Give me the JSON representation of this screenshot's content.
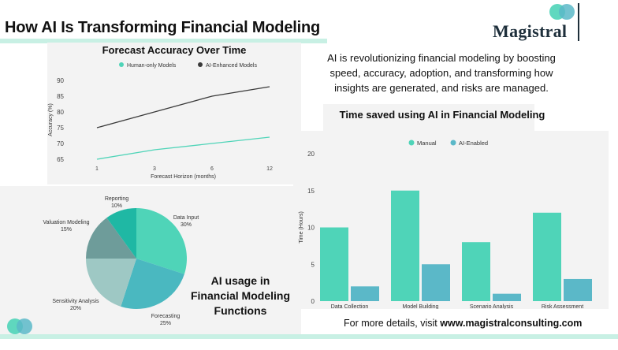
{
  "header": {
    "title": "How AI Is Transforming Financial Modeling",
    "logo_text": "Magistral"
  },
  "intro_text": "AI is revolutionizing financial modeling by boosting speed, accuracy, adoption, and transforming how insights are generated, and risks are managed.",
  "pie_heading": "AI usage in Financial Modeling Functions",
  "footer": {
    "prefix": "For more details, visit ",
    "link": "www.magistralconsulting.com"
  },
  "colors": {
    "teal": "#4fd4b8",
    "blue_teal": "#5bb8c8",
    "dark_line": "#3a3a3a",
    "band": "#c8f0e4",
    "logo_dark": "#1e2f3b"
  },
  "chart_data": [
    {
      "type": "line",
      "title": "Forecast Accuracy Over Time",
      "x": [
        "1",
        "3",
        "6",
        "12"
      ],
      "xlabel": "Forecast Horizon (months)",
      "ylabel": "Accuracy (%)",
      "yticks": [
        65,
        70,
        75,
        80,
        85,
        90
      ],
      "ylim": [
        64,
        91
      ],
      "legend_position": "top",
      "series": [
        {
          "name": "Human-only Models",
          "values": [
            65,
            68,
            70,
            72
          ],
          "color": "#4fd4b8"
        },
        {
          "name": "AI-Enhanced Models",
          "values": [
            75,
            80,
            85,
            88
          ],
          "color": "#3a3a3a"
        }
      ]
    },
    {
      "type": "pie",
      "slices": [
        {
          "label": "Data Input",
          "value": 30,
          "pct_label": "30%",
          "color": "#4fd4b8"
        },
        {
          "label": "Forecasting",
          "value": 25,
          "pct_label": "25%",
          "color": "#4ab8c0"
        },
        {
          "label": "Sensitivity Analysis",
          "value": 20,
          "pct_label": "20%",
          "color": "#9ec8c4"
        },
        {
          "label": "Valuation Modeling",
          "value": 15,
          "pct_label": "15%",
          "color": "#6e9c9a"
        },
        {
          "label": "Reporting",
          "value": 10,
          "pct_label": "10%",
          "color": "#1fb8a4"
        }
      ]
    },
    {
      "type": "bar",
      "title": "Time saved using AI in Financial Modeling",
      "categories": [
        "Data Collection",
        "Model Building",
        "Scenario Analysis",
        "Risk Assessment"
      ],
      "ylabel": "Time (Hours)",
      "yticks": [
        0,
        5,
        10,
        15,
        20
      ],
      "ylim": [
        0,
        20
      ],
      "legend_position": "top",
      "series": [
        {
          "name": "Manual",
          "values": [
            10,
            15,
            8,
            12
          ],
          "color": "#4fd4b8"
        },
        {
          "name": "AI-Enabled",
          "values": [
            2,
            5,
            1,
            3
          ],
          "color": "#5bb8c8"
        }
      ]
    }
  ]
}
